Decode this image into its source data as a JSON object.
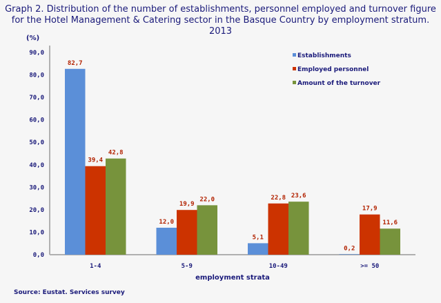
{
  "chart_data": {
    "type": "bar",
    "title": "Graph 2. Distribution of the number of establishments, personnel employed and turnover figure for the Hotel Management & Catering sector in the Basque Country by employment stratum. 2013",
    "ylabel": "(%)",
    "xlabel": "employment strata",
    "categories": [
      "1-4",
      "5-9",
      "10-49",
      ">= 50"
    ],
    "series": [
      {
        "name": "Establishments",
        "color": "#5b8fd8",
        "values": [
          82.7,
          12.0,
          5.1,
          0.2
        ],
        "labels": [
          "82,7",
          "12,0",
          "5,1",
          "0,2"
        ]
      },
      {
        "name": "Employed personnel",
        "color": "#cc3300",
        "values": [
          39.4,
          19.9,
          22.8,
          17.9
        ],
        "labels": [
          "39,4",
          "19,9",
          "22,8",
          "17,9"
        ]
      },
      {
        "name": "Amount of the turnover",
        "color": "#77933c",
        "values": [
          42.8,
          22.0,
          23.6,
          11.6
        ],
        "labels": [
          "42,8",
          "22,0",
          "23,6",
          "11,6"
        ]
      }
    ],
    "ylim": [
      0,
      90
    ],
    "yticks": [
      "0,0",
      "10,0",
      "20,0",
      "30,0",
      "40,0",
      "50,0",
      "60,0",
      "70,0",
      "80,0",
      "90,0"
    ],
    "grid": false,
    "legend": "top-right",
    "source": "Source: Eustat. Services survey"
  }
}
